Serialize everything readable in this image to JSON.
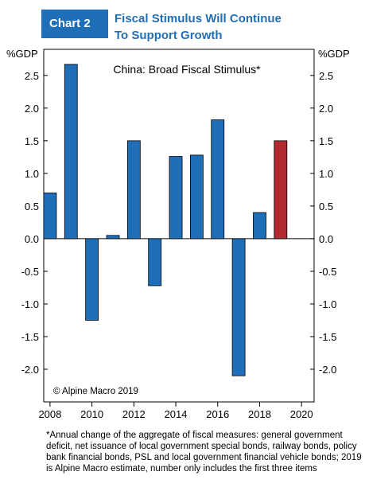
{
  "header": {
    "tag": "Chart 2",
    "title_line1": "Fiscal Stimulus Will Continue",
    "title_line2": "To Support Growth"
  },
  "chart_data": {
    "type": "bar",
    "title": "China: Broad Fiscal Stimulus*",
    "y_unit_left": "%GDP",
    "y_unit_right": "%GDP",
    "ylim": [
      -2.5,
      2.9
    ],
    "yticks": [
      2.5,
      2.0,
      1.5,
      1.0,
      0.5,
      0.0,
      -0.5,
      -1.0,
      -1.5,
      -2.0
    ],
    "ytick_labels": [
      "2.5",
      "2.0",
      "1.5",
      "1.0",
      "0.5",
      "0.0",
      "-0.5",
      "-1.0",
      "-1.5",
      "-2.0"
    ],
    "xlim": [
      2007.7,
      2020.6
    ],
    "xticks": [
      2008,
      2010,
      2012,
      2014,
      2016,
      2018,
      2020
    ],
    "x": [
      2008,
      2009,
      2010,
      2011,
      2012,
      2013,
      2014,
      2015,
      2016,
      2017,
      2018,
      2019
    ],
    "values": [
      0.7,
      2.67,
      -1.25,
      0.05,
      1.5,
      -0.72,
      1.26,
      1.28,
      1.82,
      -2.1,
      0.4,
      1.5
    ],
    "colors": [
      "#1f6fb8",
      "#1f6fb8",
      "#1f6fb8",
      "#1f6fb8",
      "#1f6fb8",
      "#1f6fb8",
      "#1f6fb8",
      "#1f6fb8",
      "#1f6fb8",
      "#1f6fb8",
      "#1f6fb8",
      "#b02a30"
    ],
    "copyright": "© Alpine Macro 2019",
    "grid": false
  },
  "footnote": "*Annual change of the aggregate of fiscal measures: general government deficit, net issuance of local government special bonds, railway bonds, policy bank financial bonds, PSL and local government financial vehicle bonds; 2019 is Alpine Macro estimate, number only includes the first three items"
}
